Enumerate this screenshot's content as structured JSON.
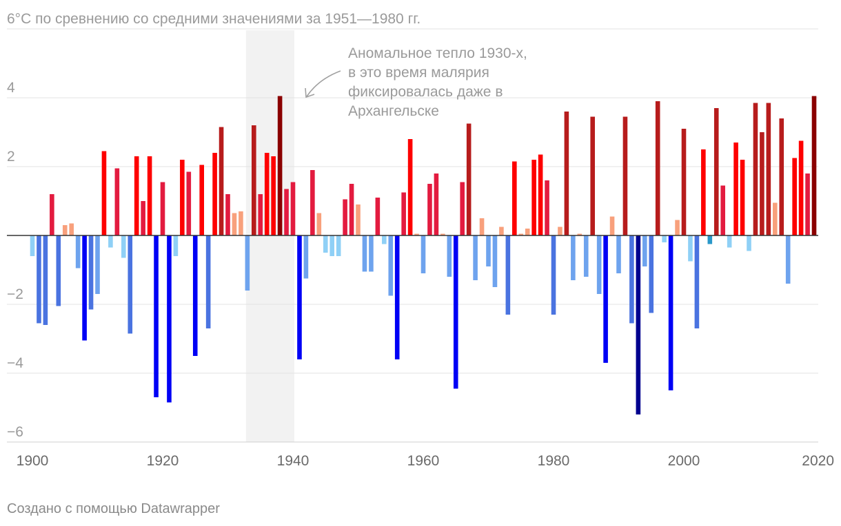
{
  "chart_data": {
    "type": "bar",
    "title": "",
    "ylabel": "6°C по сревнению со средними значениями за 1951—1980 гг.",
    "xlabel": "",
    "ylim": [
      -6,
      6
    ],
    "yticks": [
      {
        "value": 4,
        "label": "4"
      },
      {
        "value": 2,
        "label": "2"
      },
      {
        "value": -2,
        "label": "−2"
      },
      {
        "value": -4,
        "label": "−4"
      },
      {
        "value": -6,
        "label": "−6"
      }
    ],
    "xticks": [
      {
        "value": 1900,
        "label": "1900"
      },
      {
        "value": 1920,
        "label": "1920"
      },
      {
        "value": 1940,
        "label": "1940"
      },
      {
        "value": 1960,
        "label": "1960"
      },
      {
        "value": 1980,
        "label": "1980"
      },
      {
        "value": 2000,
        "label": "2000"
      },
      {
        "value": 2020,
        "label": "2020"
      }
    ],
    "x_start": 1900,
    "values": [
      -0.6,
      -2.55,
      -2.6,
      1.2,
      -2.05,
      0.3,
      0.35,
      -0.95,
      -3.05,
      -2.15,
      -1.7,
      2.45,
      -0.35,
      1.95,
      -0.65,
      -2.85,
      2.3,
      1.0,
      2.3,
      -4.7,
      1.55,
      -4.85,
      -0.6,
      2.2,
      1.85,
      -3.5,
      2.05,
      -2.7,
      2.4,
      3.15,
      1.2,
      0.65,
      0.7,
      -1.6,
      3.2,
      1.2,
      2.4,
      2.3,
      4.05,
      1.35,
      1.55,
      -3.6,
      -1.25,
      1.9,
      0.65,
      -0.5,
      -0.6,
      -0.6,
      1.05,
      1.5,
      0.9,
      -1.05,
      -1.05,
      1.1,
      -0.25,
      -1.75,
      -3.6,
      1.25,
      2.8,
      0.05,
      -1.1,
      1.5,
      1.8,
      0.05,
      -1.2,
      -4.45,
      1.55,
      3.25,
      -1.3,
      0.5,
      -0.9,
      -1.5,
      0.25,
      -2.3,
      2.15,
      0.05,
      0.2,
      2.2,
      2.35,
      1.6,
      -2.3,
      0.25,
      3.6,
      -1.3,
      0.05,
      -1.2,
      3.45,
      -1.7,
      -3.7,
      0.55,
      -1.1,
      3.45,
      -2.55,
      -5.2,
      -0.9,
      -2.25,
      3.9,
      -0.2,
      -4.5,
      0.45,
      3.1,
      -0.75,
      -2.7,
      2.5,
      -0.25,
      3.7,
      1.45,
      -0.35,
      2.7,
      2.2,
      -0.45,
      3.85,
      3.0,
      3.85,
      0.95,
      3.4,
      -1.4,
      2.25,
      2.75,
      1.8,
      4.05
    ],
    "highlight_range": [
      1933,
      1940
    ],
    "annotation": {
      "lines": [
        "Аномальное тепло 1930-х,",
        "в это время малярия",
        "фиксировалась даже в",
        "Архангельске"
      ]
    },
    "colors": {
      "pos_1": "#f8a07c",
      "pos_2": "#e31b3f",
      "pos_3": "#fe0000",
      "pos_4": "#b71c1c",
      "pos_5": "#8b0000",
      "neg_1": "#8fd0f6",
      "neg_2": "#6ea3ee",
      "neg_3": "#4a73e0",
      "neg_4": "#0000f5",
      "neg_5": "#00008f",
      "neg_teal": "#2a98c9",
      "highlight": "#f2f2f2",
      "grid": "#e3e3e3",
      "baseline": "#333333"
    }
  },
  "footer": {
    "credit": "Создано с помощью Datawrapper"
  }
}
